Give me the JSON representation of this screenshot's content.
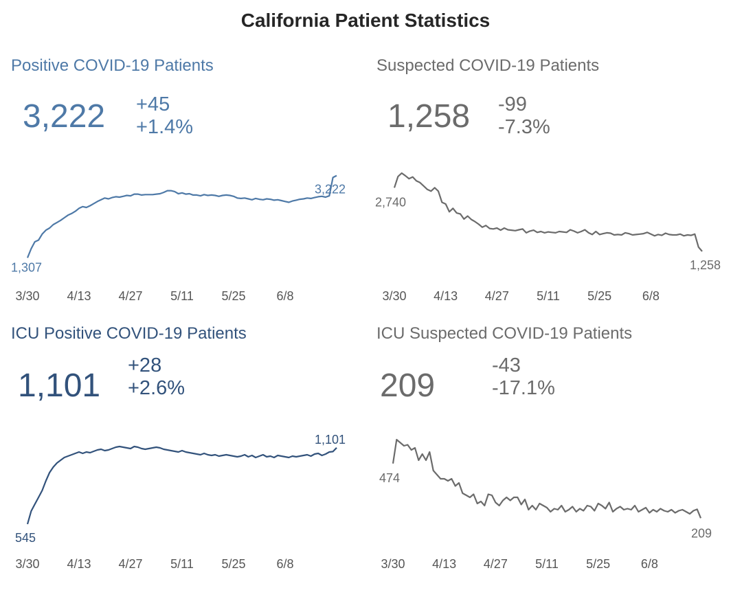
{
  "title": "California Patient Statistics",
  "colors": {
    "positive": "#4e79a7",
    "icu_positive": "#32527b",
    "suspected": "#6b6b6b",
    "axis_text": "#555555",
    "title": "#262626"
  },
  "panels": [
    {
      "title": "Positive COVID-19 Patients",
      "value": "3,222",
      "change": "+45",
      "change_pct": "+1.4%",
      "start_label": "1,307",
      "end_label": "3,222"
    },
    {
      "title": "Suspected COVID-19 Patients",
      "value": "1,258",
      "change": "-99",
      "change_pct": "-7.3%",
      "start_label": "2,740",
      "end_label": "1,258"
    },
    {
      "title": "ICU Positive COVID-19 Patients",
      "value": "1,101",
      "change": "+28",
      "change_pct": "+2.6%",
      "start_label": "545",
      "end_label": "1,101"
    },
    {
      "title": "ICU Suspected COVID-19 Patients",
      "value": "209",
      "change": "-43",
      "change_pct": "-17.1%",
      "start_label": "474",
      "end_label": "209"
    }
  ],
  "chart_data": [
    {
      "type": "line",
      "title": "Positive COVID-19 Patients",
      "xlabel": "",
      "ylabel": "",
      "x_ticks": [
        "3/30",
        "4/13",
        "4/27",
        "5/11",
        "5/25",
        "6/8"
      ],
      "start_date": "3/30",
      "ylim": [
        1200,
        3600
      ],
      "values": [
        1307,
        1520,
        1680,
        1720,
        1860,
        1950,
        2000,
        2080,
        2130,
        2180,
        2240,
        2300,
        2340,
        2390,
        2460,
        2500,
        2480,
        2520,
        2570,
        2620,
        2660,
        2700,
        2680,
        2710,
        2730,
        2720,
        2740,
        2760,
        2750,
        2790,
        2790,
        2770,
        2780,
        2780,
        2780,
        2790,
        2800,
        2830,
        2870,
        2870,
        2850,
        2800,
        2820,
        2790,
        2800,
        2770,
        2770,
        2750,
        2780,
        2760,
        2770,
        2760,
        2740,
        2760,
        2770,
        2760,
        2740,
        2700,
        2690,
        2700,
        2680,
        2660,
        2690,
        2670,
        2660,
        2680,
        2670,
        2650,
        2660,
        2640,
        2620,
        2600,
        2630,
        2650,
        2670,
        2680,
        2700,
        2690,
        2710,
        2730,
        2740,
        2720,
        2750,
        3177,
        3222
      ]
    },
    {
      "type": "line",
      "title": "Suspected COVID-19 Patients",
      "xlabel": "",
      "ylabel": "",
      "x_ticks": [
        "3/30",
        "4/13",
        "4/27",
        "5/11",
        "5/25",
        "6/8"
      ],
      "start_date": "3/30",
      "ylim": [
        1000,
        3400
      ],
      "values": [
        2740,
        3000,
        3080,
        3020,
        2950,
        2990,
        2900,
        2860,
        2780,
        2700,
        2660,
        2740,
        2660,
        2400,
        2360,
        2180,
        2260,
        2150,
        2130,
        2010,
        2080,
        2000,
        1950,
        1890,
        1820,
        1860,
        1790,
        1780,
        1800,
        1750,
        1800,
        1760,
        1750,
        1740,
        1760,
        1780,
        1690,
        1730,
        1750,
        1700,
        1720,
        1690,
        1710,
        1700,
        1690,
        1720,
        1710,
        1700,
        1760,
        1730,
        1690,
        1720,
        1760,
        1690,
        1650,
        1720,
        1650,
        1670,
        1690,
        1680,
        1640,
        1650,
        1640,
        1690,
        1670,
        1640,
        1650,
        1660,
        1670,
        1700,
        1660,
        1620,
        1650,
        1630,
        1680,
        1650,
        1640,
        1640,
        1660,
        1620,
        1640,
        1630,
        1660,
        1357,
        1258
      ]
    },
    {
      "type": "line",
      "title": "ICU Positive COVID-19 Patients",
      "xlabel": "",
      "ylabel": "",
      "x_ticks": [
        "3/30",
        "4/13",
        "4/27",
        "5/11",
        "5/25",
        "6/8"
      ],
      "start_date": "3/30",
      "ylim": [
        500,
        1250
      ],
      "values": [
        545,
        640,
        690,
        740,
        790,
        860,
        920,
        960,
        990,
        1010,
        1030,
        1040,
        1050,
        1060,
        1070,
        1060,
        1070,
        1065,
        1075,
        1085,
        1090,
        1080,
        1085,
        1095,
        1105,
        1110,
        1105,
        1100,
        1095,
        1110,
        1105,
        1095,
        1090,
        1095,
        1100,
        1105,
        1100,
        1090,
        1085,
        1080,
        1075,
        1070,
        1080,
        1070,
        1065,
        1060,
        1055,
        1050,
        1060,
        1050,
        1045,
        1050,
        1040,
        1045,
        1050,
        1045,
        1040,
        1035,
        1040,
        1050,
        1035,
        1045,
        1030,
        1040,
        1050,
        1035,
        1040,
        1030,
        1045,
        1040,
        1035,
        1030,
        1040,
        1035,
        1040,
        1045,
        1050,
        1040,
        1055,
        1060,
        1045,
        1055,
        1070,
        1073,
        1101
      ]
    },
    {
      "type": "line",
      "title": "ICU Suspected COVID-19 Patients",
      "xlabel": "",
      "ylabel": "",
      "x_ticks": [
        "3/30",
        "4/13",
        "4/27",
        "5/11",
        "5/25",
        "6/8"
      ],
      "start_date": "3/30",
      "ylim": [
        150,
        650
      ],
      "values": [
        474,
        590,
        575,
        560,
        565,
        540,
        550,
        490,
        520,
        490,
        530,
        440,
        420,
        400,
        400,
        390,
        400,
        365,
        380,
        330,
        320,
        310,
        325,
        280,
        290,
        270,
        325,
        320,
        285,
        270,
        295,
        310,
        295,
        310,
        310,
        275,
        300,
        250,
        270,
        250,
        280,
        270,
        260,
        240,
        255,
        250,
        270,
        240,
        250,
        265,
        240,
        255,
        245,
        270,
        265,
        245,
        280,
        270,
        255,
        285,
        240,
        255,
        265,
        250,
        255,
        250,
        270,
        240,
        250,
        260,
        235,
        250,
        240,
        255,
        245,
        240,
        250,
        235,
        245,
        250,
        240,
        230,
        245,
        252,
        209
      ]
    }
  ]
}
